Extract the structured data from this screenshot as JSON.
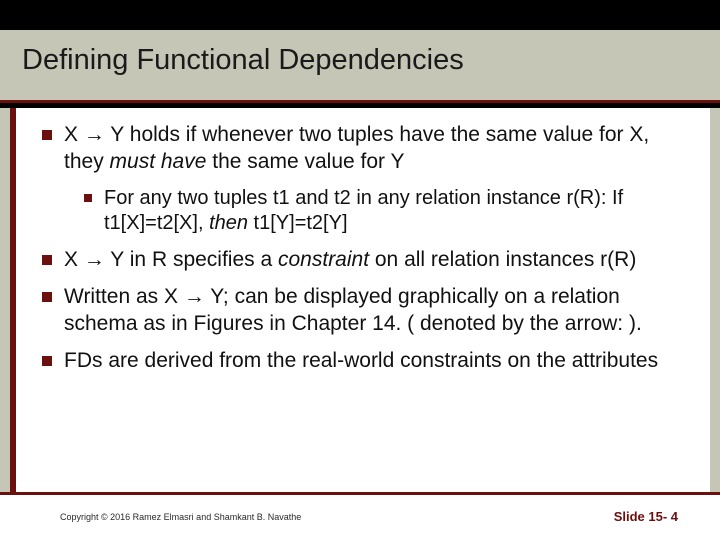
{
  "title": "Defining Functional Dependencies",
  "bullets": {
    "item1_pre": "X → Y holds if whenever two tuples have the same value for X, they ",
    "item1_it": "must have",
    "item1_post": " the same value for Y",
    "sub1_pre": "For any two tuples t1 and t2 in any relation instance r(R): If t1[X]=t2[X], ",
    "sub1_it": "then",
    "sub1_post": " t1[Y]=t2[Y]",
    "item2_pre": "X → Y in R specifies a ",
    "item2_it": "constraint",
    "item2_post": " on all relation instances r(R)",
    "item3": "Written as X → Y; can be displayed graphically on a relation schema as in Figures in Chapter 14.  ( denoted by the arrow:  ).",
    "item4": "FDs are derived from the real-world constraints on the attributes"
  },
  "footer": {
    "copyright": "Copyright © 2016 Ramez Elmasri and Shamkant B. Navathe",
    "slide": "Slide 15- 4"
  },
  "colors": {
    "accent": "#6b0f0f",
    "band": "#c6c6b7",
    "bg": "#000000",
    "content_bg": "#ffffff"
  }
}
